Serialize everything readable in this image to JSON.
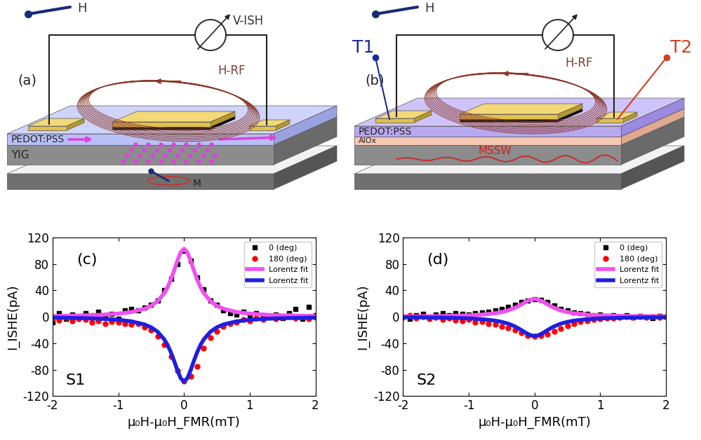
{
  "diagrams": [
    {
      "panel": "(a)",
      "field": "H",
      "voltmeter": "V-ISH",
      "rf_field": "H-RF",
      "layers": [
        "PEDOT:PSS",
        "YIG"
      ],
      "magnetization": "M"
    },
    {
      "panel": "(b)",
      "field": "H",
      "rf_field": "H-RF",
      "layers": [
        "PEDOT:PSS",
        "AlOx"
      ],
      "terminals": [
        "T1",
        "T2"
      ],
      "wave": "MSSW"
    }
  ],
  "chart_data": [
    {
      "type": "scatter",
      "annotations": [
        "(c)",
        "S1"
      ],
      "xlabel": "μ₀H-μ₀H_FMR(mT)",
      "ylabel": "I_ISHE(pA)",
      "xlim": [
        -2,
        2
      ],
      "xticks": [
        -2,
        -1,
        0,
        1,
        2
      ],
      "ylim": [
        -120,
        120
      ],
      "yticks": [
        -120,
        -80,
        -40,
        0,
        40,
        80,
        120
      ],
      "grid": false,
      "legend": "upper right",
      "series": [
        {
          "name": "0 (deg)",
          "type": "scatter",
          "marker": "square",
          "color": "#000000",
          "x": [
            -2.0,
            -1.9,
            -1.8,
            -1.7,
            -1.6,
            -1.5,
            -1.4,
            -1.3,
            -1.2,
            -1.1,
            -1.0,
            -0.9,
            -0.8,
            -0.7,
            -0.6,
            -0.5,
            -0.4,
            -0.3,
            -0.2,
            -0.1,
            0.0,
            0.1,
            0.2,
            0.3,
            0.4,
            0.5,
            0.6,
            0.7,
            0.8,
            0.9,
            1.0,
            1.1,
            1.2,
            1.3,
            1.4,
            1.5,
            1.6,
            1.7,
            1.8,
            1.9,
            2.0
          ],
          "values": [
            -8,
            5,
            -3,
            3,
            -2,
            6,
            2,
            8,
            0,
            4,
            -3,
            10,
            12,
            10,
            14,
            18,
            25,
            40,
            57,
            80,
            100,
            85,
            60,
            42,
            25,
            18,
            10,
            5,
            3,
            8,
            2,
            5,
            2,
            0,
            3,
            -2,
            6,
            12,
            -3,
            15,
            2
          ]
        },
        {
          "name": "180 (deg)",
          "type": "scatter",
          "marker": "circle",
          "color": "#ff0000",
          "x": [
            -2.0,
            -1.9,
            -1.8,
            -1.7,
            -1.6,
            -1.5,
            -1.4,
            -1.3,
            -1.2,
            -1.1,
            -1.0,
            -0.9,
            -0.8,
            -0.7,
            -0.6,
            -0.5,
            -0.4,
            -0.3,
            -0.2,
            -0.1,
            0.0,
            0.1,
            0.2,
            0.3,
            0.4,
            0.5,
            0.6,
            0.7,
            0.8,
            0.9,
            1.0,
            1.1,
            1.2,
            1.3,
            1.4,
            1.5,
            1.6,
            1.7,
            1.8,
            1.9,
            2.0
          ],
          "values": [
            -2,
            -5,
            -1,
            -6,
            -3,
            -4,
            -8,
            -6,
            -10,
            -7,
            -8,
            -10,
            -12,
            -10,
            -16,
            -20,
            -30,
            -42,
            -60,
            -82,
            -97,
            -90,
            -75,
            -48,
            -32,
            -22,
            -15,
            -10,
            -8,
            -4,
            -6,
            -2,
            -4,
            0,
            -3,
            -1,
            2,
            -2,
            0,
            -3,
            -1
          ]
        },
        {
          "name": "Lorentz fit",
          "type": "line",
          "line_style": "solid",
          "color": "#f050f0",
          "x": [
            -2.0,
            -1.5,
            -1.25,
            -1.0,
            -0.8,
            -0.6,
            -0.5,
            -0.4,
            -0.3,
            -0.25,
            -0.2,
            -0.15,
            -0.1,
            -0.05,
            0.0,
            0.05,
            0.1,
            0.15,
            0.2,
            0.25,
            0.3,
            0.4,
            0.5,
            0.6,
            0.8,
            1.0,
            1.25,
            1.5,
            2.0
          ],
          "values": [
            1.2,
            2.2,
            3.1,
            4.8,
            7.2,
            12.2,
            16.7,
            23.9,
            36.0,
            45.0,
            56.4,
            70.3,
            85.4,
            97.9,
            103,
            97.9,
            85.4,
            70.3,
            56.4,
            45.0,
            36.0,
            23.9,
            16.7,
            12.2,
            7.2,
            4.8,
            3.1,
            2.2,
            1.2
          ]
        },
        {
          "name": "Lorentz fit",
          "type": "line",
          "line_style": "solid",
          "color": "#1f1fe0",
          "x": [
            -2.0,
            -1.5,
            -1.25,
            -1.0,
            -0.8,
            -0.6,
            -0.5,
            -0.4,
            -0.3,
            -0.25,
            -0.2,
            -0.15,
            -0.1,
            -0.05,
            0.0,
            0.05,
            0.1,
            0.15,
            0.2,
            0.25,
            0.3,
            0.4,
            0.5,
            0.6,
            0.8,
            1.0,
            1.25,
            1.5,
            2.0
          ],
          "values": [
            -1.2,
            -2.1,
            -3.0,
            -4.5,
            -6.9,
            -11.6,
            -15.9,
            -22.8,
            -34.3,
            -42.8,
            -53.7,
            -66.9,
            -81.2,
            -93.2,
            -98,
            -93.2,
            -81.2,
            -66.9,
            -53.7,
            -42.8,
            -34.3,
            -22.8,
            -15.9,
            -11.6,
            -6.9,
            -4.5,
            -3.0,
            -2.1,
            -1.2
          ]
        }
      ]
    },
    {
      "type": "scatter",
      "annotations": [
        "(d)",
        "S2"
      ],
      "xlabel": "μ₀H-μ₀H_FMR(mT)",
      "ylabel": "I_ISHE(pA)",
      "xlim": [
        -2,
        2
      ],
      "xticks": [
        -2,
        -1,
        0,
        1,
        2
      ],
      "ylim": [
        -120,
        120
      ],
      "yticks": [
        -120,
        -80,
        -40,
        0,
        40,
        80,
        120
      ],
      "grid": false,
      "legend": "upper right",
      "series": [
        {
          "name": "0 (deg)",
          "type": "scatter",
          "marker": "square",
          "color": "#000000",
          "x": [
            -2.0,
            -1.9,
            -1.8,
            -1.7,
            -1.6,
            -1.5,
            -1.4,
            -1.3,
            -1.2,
            -1.1,
            -1.0,
            -0.9,
            -0.8,
            -0.7,
            -0.6,
            -0.5,
            -0.4,
            -0.3,
            -0.2,
            -0.1,
            0.0,
            0.1,
            0.2,
            0.3,
            0.4,
            0.5,
            0.6,
            0.7,
            0.8,
            0.9,
            1.0,
            1.1,
            1.2,
            1.3,
            1.4,
            1.5,
            1.6,
            1.7,
            1.8,
            1.9,
            2.0
          ],
          "values": [
            0,
            -3,
            2,
            4,
            -1,
            3,
            5,
            2,
            6,
            4,
            3,
            5,
            7,
            8,
            10,
            12,
            15,
            18,
            22,
            25,
            27,
            26,
            22,
            17,
            12,
            10,
            7,
            5,
            4,
            2,
            3,
            1,
            2,
            0,
            2,
            -1,
            1,
            0,
            -2,
            1,
            0
          ]
        },
        {
          "name": "180 (deg)",
          "type": "scatter",
          "marker": "circle",
          "color": "#ff0000",
          "x": [
            -2.0,
            -1.9,
            -1.8,
            -1.7,
            -1.6,
            -1.5,
            -1.4,
            -1.3,
            -1.2,
            -1.1,
            -1.0,
            -0.9,
            -0.8,
            -0.7,
            -0.6,
            -0.5,
            -0.4,
            -0.3,
            -0.2,
            -0.1,
            0.0,
            0.1,
            0.2,
            0.3,
            0.4,
            0.5,
            0.6,
            0.7,
            0.8,
            0.9,
            1.0,
            1.1,
            1.2,
            1.3,
            1.4,
            1.5,
            1.6,
            1.7,
            1.8,
            1.9,
            2.0
          ],
          "values": [
            -1,
            2,
            -2,
            0,
            -3,
            -1,
            -4,
            -2,
            -5,
            -6,
            -4,
            -8,
            -7,
            -10,
            -12,
            -15,
            -17,
            -20,
            -24,
            -28,
            -30,
            -29,
            -26,
            -22,
            -18,
            -14,
            -10,
            -7,
            -6,
            -4,
            -3,
            -2,
            -2,
            -1,
            0,
            -1,
            0,
            -1,
            0,
            -1,
            0
          ]
        },
        {
          "name": "Lorentz fit",
          "type": "line",
          "line_style": "solid",
          "color": "#f050f0",
          "x": [
            -2.0,
            -1.5,
            -1.25,
            -1.0,
            -0.8,
            -0.6,
            -0.5,
            -0.4,
            -0.3,
            -0.25,
            -0.2,
            -0.15,
            -0.1,
            -0.05,
            0.0,
            0.05,
            0.1,
            0.15,
            0.2,
            0.25,
            0.3,
            0.4,
            0.5,
            0.6,
            0.8,
            1.0,
            1.25,
            1.5,
            2.0
          ],
          "values": [
            0.6,
            1.0,
            1.5,
            2.2,
            3.3,
            5.4,
            7.1,
            9.7,
            13.5,
            15.9,
            18.7,
            21.6,
            24.3,
            26.3,
            27,
            26.3,
            24.3,
            21.6,
            18.7,
            15.9,
            13.5,
            9.7,
            7.1,
            5.4,
            3.3,
            2.2,
            1.5,
            1.0,
            0.6
          ]
        },
        {
          "name": "Lorentz fit",
          "type": "line",
          "line_style": "solid",
          "color": "#1f1fe0",
          "x": [
            -2.0,
            -1.5,
            -1.25,
            -1.0,
            -0.8,
            -0.6,
            -0.5,
            -0.4,
            -0.3,
            -0.25,
            -0.2,
            -0.15,
            -0.1,
            -0.05,
            0.0,
            0.05,
            0.1,
            0.15,
            0.2,
            0.25,
            0.3,
            0.4,
            0.5,
            0.6,
            0.8,
            1.0,
            1.25,
            1.5,
            2.0
          ],
          "values": [
            -0.6,
            -1.1,
            -1.6,
            -2.4,
            -3.6,
            -5.8,
            -7.7,
            -10.4,
            -14.5,
            -17.1,
            -20.1,
            -23.2,
            -26.1,
            -28.2,
            -29,
            -28.2,
            -26.1,
            -23.2,
            -20.1,
            -17.1,
            -14.5,
            -10.4,
            -7.7,
            -5.8,
            -3.6,
            -2.4,
            -1.6,
            -1.1,
            -0.6
          ]
        }
      ]
    }
  ]
}
